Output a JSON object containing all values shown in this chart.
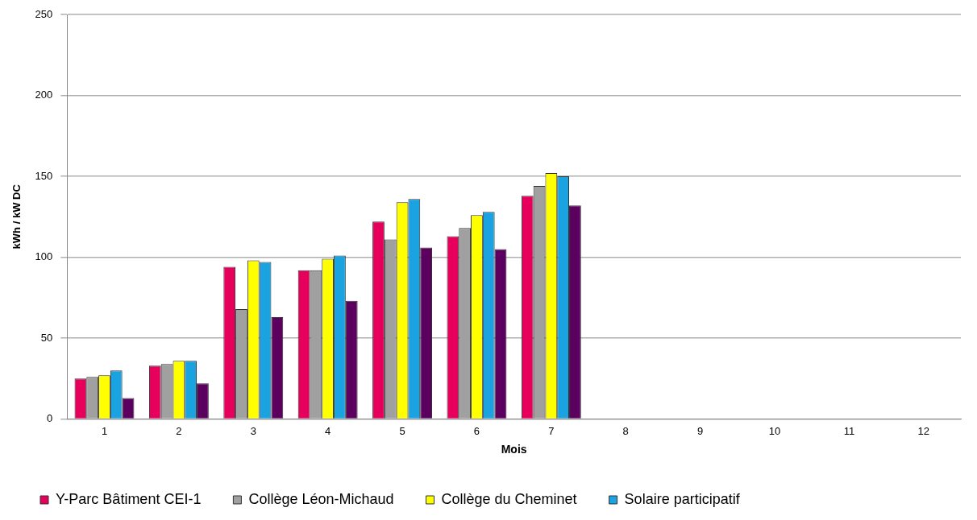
{
  "chart_data": {
    "type": "bar",
    "xlabel": "Mois",
    "ylabel": "kWh / kW DC",
    "categories": [
      "1",
      "2",
      "3",
      "4",
      "5",
      "6",
      "7",
      "8",
      "9",
      "10",
      "11",
      "12"
    ],
    "series": [
      {
        "name": "Y-Parc Bâtiment CEI-1",
        "color": "#e6005c",
        "values": [
          25,
          33,
          94,
          92,
          122,
          113,
          138,
          null,
          null,
          null,
          null,
          null
        ]
      },
      {
        "name": "Collège Léon-Michaud",
        "color": "#a0a0a0",
        "values": [
          26,
          34,
          68,
          92,
          111,
          118,
          144,
          null,
          null,
          null,
          null,
          null
        ]
      },
      {
        "name": "Collège du Cheminet",
        "color": "#ffff00",
        "values": [
          27,
          36,
          98,
          99,
          134,
          126,
          152,
          null,
          null,
          null,
          null,
          null
        ]
      },
      {
        "name": "Solaire participatif",
        "color": "#1aa3e0",
        "values": [
          30,
          36,
          97,
          101,
          136,
          128,
          150,
          null,
          null,
          null,
          null,
          null
        ]
      },
      {
        "color": "#5c0060",
        "values": [
          13,
          22,
          63,
          73,
          106,
          105,
          132,
          null,
          null,
          null,
          null,
          null
        ]
      }
    ],
    "ylim": [
      0,
      250
    ],
    "yticks": [
      0,
      50,
      100,
      150,
      200,
      250
    ],
    "grid": "y",
    "legend": "bottom"
  }
}
